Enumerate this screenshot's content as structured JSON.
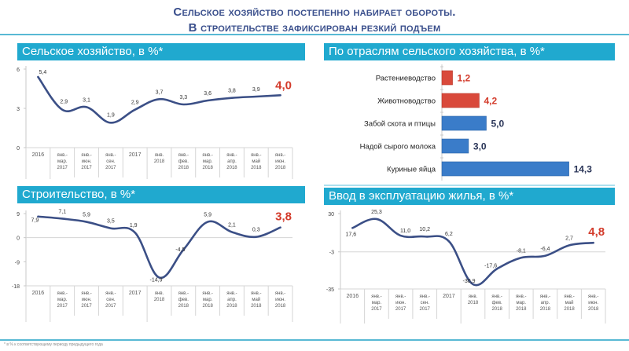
{
  "headline": {
    "line1": "Сельское хозяйство постепенно набирает обороты.",
    "line2": "В строительстве зафиксирован резкий подъем"
  },
  "footnote": "* в % к соответствующему периоду предыдущего года",
  "colors": {
    "title_bar": "#20a9cf",
    "headline": "#3a4f8c",
    "line": "#3b4f86",
    "highlight": "#d33b2b",
    "bar_red": "#d9493b",
    "bar_blue": "#3a7cc9",
    "rule": "#58b9d4"
  },
  "categories": [
    "2016",
    "янв.-мар. 2017",
    "янв.-июн. 2017",
    "янв.-сен. 2017",
    "2017",
    "янв. 2018",
    "янв.-фев. 2018",
    "янв.-мар. 2018",
    "янв.-апр. 2018",
    "янв.-май 2018",
    "янв.-июн. 2018"
  ],
  "chart_data": [
    {
      "type": "line",
      "title": "Сельское хозяйство, в %*",
      "categories": [
        "2016",
        "янв.-мар. 2017",
        "янв.-июн. 2017",
        "янв.-сен. 2017",
        "2017",
        "янв. 2018",
        "янв.-фев. 2018",
        "янв.-мар. 2018",
        "янв.-апр. 2018",
        "янв.-май 2018",
        "янв.-июн. 2018"
      ],
      "values": [
        5.4,
        2.9,
        3.1,
        1.9,
        2.9,
        3.7,
        3.3,
        3.6,
        3.8,
        3.9,
        4.0
      ],
      "labels": [
        "5,4",
        "2,9",
        "3,1",
        "1,9",
        "2,9",
        "3,7",
        "3,3",
        "3,6",
        "3,8",
        "3,9",
        "4,0"
      ],
      "yticks": [
        6,
        3,
        0
      ],
      "ylim": [
        0,
        6
      ],
      "highlight_last": true
    },
    {
      "type": "bar",
      "orientation": "horizontal",
      "title": "По отраслям сельского хозяйства, в %*",
      "categories": [
        "Растениеводство",
        "Животноводство",
        "Забой скота и птицы",
        "Надой сырого молока",
        "Куриные яйца"
      ],
      "values": [
        1.2,
        4.2,
        5.0,
        3.0,
        14.3
      ],
      "labels": [
        "1,2",
        "4,2",
        "5,0",
        "3,0",
        "14,3"
      ],
      "bar_colors": [
        "#d9493b",
        "#d9493b",
        "#3a7cc9",
        "#3a7cc9",
        "#3a7cc9"
      ]
    },
    {
      "type": "line",
      "title": "Строительство, в %*",
      "categories": [
        "2016",
        "янв.-мар. 2017",
        "янв.-июн. 2017",
        "янв.-сен. 2017",
        "2017",
        "янв. 2018",
        "янв.-фев. 2018",
        "янв.-мар. 2018",
        "янв.-апр. 2018",
        "янв.-май 2018",
        "янв.-июн. 2018"
      ],
      "values": [
        7.9,
        7.1,
        5.9,
        3.5,
        1.9,
        -14.9,
        -4.5,
        5.9,
        2.1,
        0.3,
        3.8
      ],
      "labels": [
        "7,9",
        "7,1",
        "5,9",
        "3,5",
        "1,9",
        "-14,9",
        "-4,5",
        "5,9",
        "2,1",
        "0,3",
        "3,8"
      ],
      "yticks": [
        9,
        0,
        -9,
        -18
      ],
      "ylim": [
        -18,
        9
      ],
      "highlight_last": true
    },
    {
      "type": "line",
      "title": "Ввод в эксплуатацию жилья, в %*",
      "categories": [
        "2016",
        "янв.-мар. 2017",
        "янв.-июн. 2017",
        "янв.-сен. 2017",
        "2017",
        "янв. 2018",
        "янв.-фев. 2018",
        "янв.-мар. 2018",
        "янв.-апр. 2018",
        "янв.-май 2018",
        "янв.-июн. 2018"
      ],
      "values": [
        17.6,
        25.3,
        11.0,
        10.2,
        6.2,
        -30.9,
        -17.6,
        -8.1,
        -6.4,
        2.7,
        4.8
      ],
      "labels": [
        "17,6",
        "25,3",
        "11,0",
        "10,2",
        "6,2",
        "-30,9",
        "-17,6",
        "-8,1",
        "-6,4",
        "2,7",
        "4,8"
      ],
      "yticks": [
        30,
        -3,
        -35
      ],
      "ylim": [
        -35,
        30
      ],
      "highlight_last": true
    }
  ],
  "panels": {
    "agri": {
      "title": "Сельское хозяйство, в %*"
    },
    "branches": {
      "title": "По отраслям сельского хозяйства, в %*"
    },
    "construction": {
      "title": "Строительство, в %*"
    },
    "housing": {
      "title": "Ввод в эксплуатацию жилья, в %*"
    }
  }
}
